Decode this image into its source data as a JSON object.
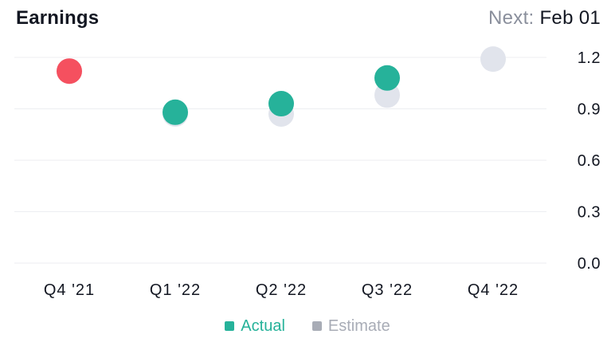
{
  "header": {
    "title": "Earnings",
    "next_label": "Next:",
    "next_value": "Feb 01"
  },
  "colors": {
    "actual": "#26b29a",
    "actual_miss": "#f5505f",
    "estimate": "#e1e4ec",
    "grid": "#eceef2",
    "text": "#131722",
    "muted": "#8a8f9c"
  },
  "chart_data": {
    "type": "scatter",
    "categories": [
      "Q4 '21",
      "Q1 '22",
      "Q2 '22",
      "Q3 '22",
      "Q4 '22"
    ],
    "ylim": [
      0,
      1.2
    ],
    "yticks": [
      "1.2",
      "0.9",
      "0.6",
      "0.3",
      "0.0"
    ],
    "grid": true,
    "legend_position": "bottom",
    "series": [
      {
        "name": "Actual",
        "values": [
          1.12,
          0.88,
          0.93,
          1.08,
          null
        ]
      },
      {
        "name": "Estimate",
        "values": [
          1.12,
          0.87,
          0.87,
          0.98,
          1.19
        ]
      }
    ]
  }
}
